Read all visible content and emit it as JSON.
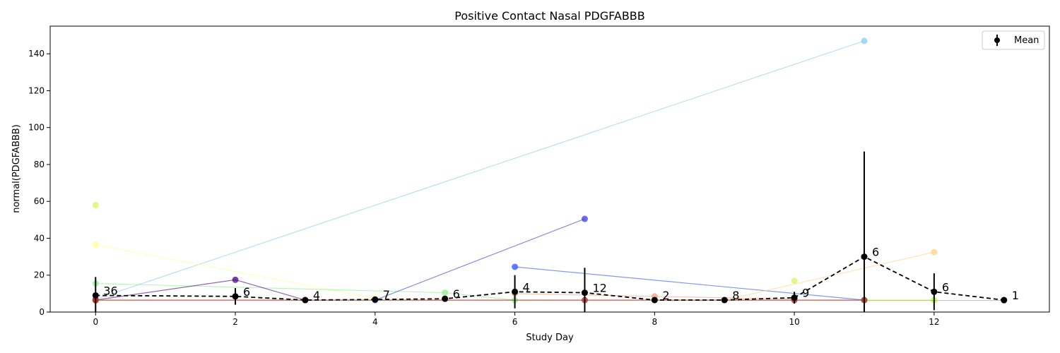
{
  "chart_data": {
    "type": "line",
    "title": "Positive Contact Nasal PDGFABBB",
    "xlabel": "Study Day",
    "ylabel": "normal(PDGFABBB)",
    "xlim": [
      -0.65,
      13.65
    ],
    "ylim": [
      0,
      155
    ],
    "xticks": [
      0,
      2,
      4,
      6,
      8,
      10,
      12
    ],
    "yticks": [
      0,
      20,
      40,
      60,
      80,
      100,
      120,
      140
    ],
    "grid": false,
    "legend": {
      "position": "top-right",
      "entries": [
        "Mean"
      ]
    },
    "series": [
      {
        "color": "#87ceeb",
        "points": [
          [
            0,
            7.0
          ],
          [
            11,
            147.0
          ]
        ]
      },
      {
        "color": "#ffff8f",
        "points": [
          [
            0,
            36.5
          ],
          [
            4,
            7.5
          ]
        ]
      },
      {
        "color": "#d4f562",
        "points": [
          [
            0,
            58.0
          ]
        ]
      },
      {
        "color": "#8fee8f",
        "points": [
          [
            0,
            15.5
          ],
          [
            5,
            10.5
          ],
          [
            6,
            6.5
          ]
        ]
      },
      {
        "color": "#4b0082",
        "points": [
          [
            0,
            6.5
          ],
          [
            2,
            17.5
          ],
          [
            3,
            6.5
          ]
        ]
      },
      {
        "color": "#3a3adc",
        "points": [
          [
            4,
            6.5
          ],
          [
            7,
            50.5
          ]
        ]
      },
      {
        "color": "#2f4fff",
        "points": [
          [
            6,
            24.5
          ],
          [
            11,
            6.5
          ]
        ]
      },
      {
        "color": "#ffd27f",
        "points": [
          [
            9,
            6.5
          ],
          [
            12,
            32.5
          ]
        ]
      },
      {
        "color": "#d4f562",
        "points": [
          [
            10,
            17.0
          ]
        ]
      },
      {
        "color": "#f0a080",
        "points": [
          [
            6,
            10.0
          ],
          [
            8,
            8.5
          ],
          [
            10,
            7.0
          ]
        ]
      },
      {
        "color": "#adff2f",
        "points": [
          [
            11,
            6.5
          ],
          [
            12,
            6.5
          ]
        ]
      },
      {
        "color": "#ff8c00",
        "points": [
          [
            0,
            6.3
          ],
          [
            13,
            6.3
          ]
        ]
      },
      {
        "color": "#b22222",
        "points": [
          [
            0,
            6.5
          ],
          [
            7,
            6.5
          ],
          [
            10,
            6.5
          ],
          [
            11,
            6.5
          ]
        ]
      }
    ],
    "mean": {
      "name": "Mean",
      "x": [
        0,
        2,
        3,
        4,
        5,
        6,
        7,
        8,
        9,
        10,
        11,
        12,
        13
      ],
      "y": [
        9.0,
        8.5,
        6.5,
        6.8,
        7.2,
        11.0,
        10.5,
        6.5,
        6.5,
        7.8,
        30.0,
        11.0,
        6.5
      ],
      "err": [
        10.0,
        4.5,
        0.3,
        0.6,
        1.2,
        9.0,
        13.5,
        0.3,
        0.3,
        3.2,
        57.0,
        10.0,
        0
      ],
      "counts": [
        "36",
        "6",
        "4",
        "7",
        "6",
        "4",
        "12",
        "2",
        "8",
        "9",
        "6",
        "6",
        "1"
      ]
    }
  }
}
